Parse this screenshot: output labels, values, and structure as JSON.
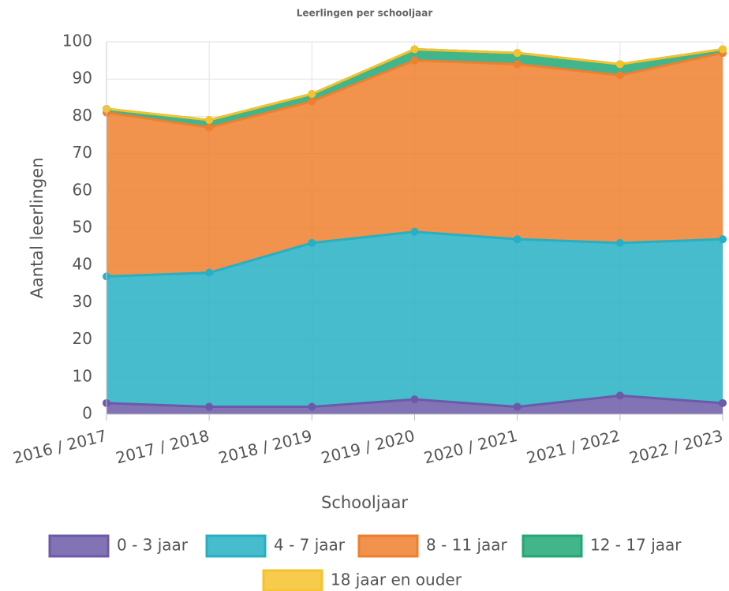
{
  "chart_data": {
    "type": "area",
    "stacked": true,
    "title": "Leerlingen per schooljaar",
    "x_label": "Schooljaar",
    "y_label": "Aantal leerlingen",
    "categories": [
      "2016 / 2017",
      "2017 / 2018",
      "2018 / 2019",
      "2019 / 2020",
      "2020 / 2021",
      "2021 / 2022",
      "2022 / 2023"
    ],
    "series": [
      {
        "name": "0 - 3 jaar",
        "color": "#6c5aa8",
        "values": [
          3,
          2,
          2,
          4,
          2,
          5,
          3
        ]
      },
      {
        "name": "4 - 7 jaar",
        "color": "#26b0c4",
        "values": [
          34,
          36,
          44,
          45,
          45,
          41,
          44
        ]
      },
      {
        "name": "8 - 11 jaar",
        "color": "#ef7f2e",
        "values": [
          44,
          39,
          38,
          46,
          47,
          45,
          50
        ]
      },
      {
        "name": "12 - 17 jaar",
        "color": "#22a877",
        "values": [
          1,
          2,
          2,
          3,
          3,
          3,
          1
        ]
      },
      {
        "name": "18 jaar en ouder",
        "color": "#f6c22c",
        "values": [
          0,
          0,
          0,
          0,
          0,
          0,
          0
        ]
      }
    ],
    "ylim": [
      0,
      100
    ],
    "yticks": [
      0,
      10,
      20,
      30,
      40,
      50,
      60,
      70,
      80,
      90,
      100
    ],
    "grid": true
  }
}
